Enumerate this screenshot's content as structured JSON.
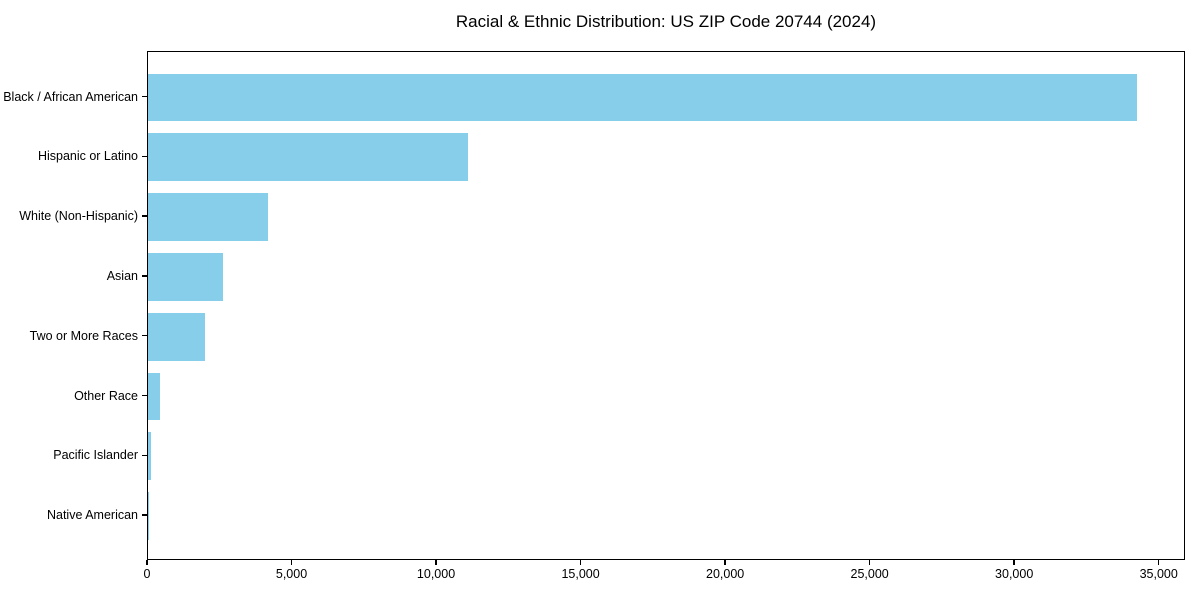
{
  "chart_data": {
    "type": "bar",
    "orientation": "horizontal",
    "title": "Racial & Ethnic Distribution: US ZIP Code 20744 (2024)",
    "categories": [
      "Black / African American",
      "Hispanic or Latino",
      "White (Non-Hispanic)",
      "Asian",
      "Two or More Races",
      "Other Race",
      "Pacific Islander",
      "Native American"
    ],
    "values": [
      34200,
      11080,
      4150,
      2600,
      1970,
      410,
      120,
      30
    ],
    "xlabel": "",
    "ylabel": "",
    "xlim": [
      0,
      35910
    ],
    "xticks": [
      0,
      5000,
      10000,
      15000,
      20000,
      25000,
      30000,
      35000
    ],
    "xtick_labels": [
      "0",
      "5,000",
      "10,000",
      "15,000",
      "20,000",
      "25,000",
      "30,000",
      "35,000"
    ],
    "bar_color": "#87CEEB",
    "axis_color": "#000000",
    "background_color": "#ffffff",
    "grid": false,
    "legend": null
  }
}
